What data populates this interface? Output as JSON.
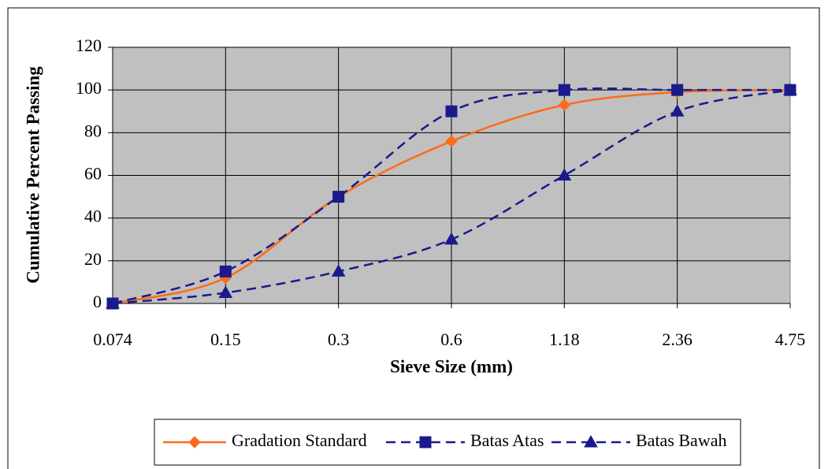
{
  "chart_data": {
    "type": "line",
    "x_label": "Sieve Size (mm)",
    "y_label": "Cumulative Percent Passing",
    "categories": [
      "0.074",
      "0.15",
      "0.3",
      "0.6",
      "1.18",
      "2.36",
      "4.75"
    ],
    "series": [
      {
        "name": "Gradation Standard",
        "color": "#ff6a1a",
        "line_style": "solid",
        "marker": "diamond",
        "values": [
          0,
          12,
          50,
          76,
          93,
          99,
          100
        ]
      },
      {
        "name": "Batas Atas",
        "color": "#1a1a8c",
        "line_style": "dashed",
        "marker": "square",
        "values": [
          0,
          15,
          50,
          90,
          100,
          100,
          100
        ]
      },
      {
        "name": "Batas Bawah",
        "color": "#1a1a8c",
        "line_style": "dashed",
        "marker": "triangle",
        "values": [
          0,
          5,
          15,
          30,
          60,
          90,
          100
        ]
      }
    ],
    "ylim": [
      0,
      120
    ],
    "yticks": [
      0,
      20,
      40,
      60,
      80,
      100,
      120
    ],
    "grid": true,
    "smooth": true,
    "plot_background": "#c0c0c0",
    "legend": "bottom"
  }
}
